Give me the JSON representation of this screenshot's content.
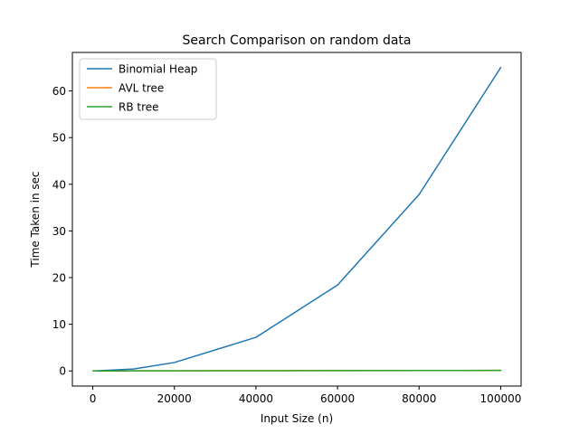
{
  "chart_data": {
    "type": "line",
    "title": "Search Comparison on random data",
    "xlabel": "Input Size (n)",
    "ylabel": "Time Taken in sec",
    "xlim": [
      -5000,
      105000
    ],
    "ylim": [
      -3.25,
      68.25
    ],
    "xticks": [
      0,
      20000,
      40000,
      60000,
      80000,
      100000
    ],
    "xtick_labels": [
      "0",
      "20000",
      "40000",
      "60000",
      "80000",
      "100000"
    ],
    "yticks": [
      0,
      10,
      20,
      30,
      40,
      50,
      60
    ],
    "ytick_labels": [
      "0",
      "10",
      "20",
      "30",
      "40",
      "50",
      "60"
    ],
    "grid": false,
    "legend_position": "top-left",
    "x": [
      100,
      10000,
      20000,
      40000,
      60000,
      80000,
      100000
    ],
    "series": [
      {
        "name": "Binomial Heap",
        "color": "#1f77b4",
        "values": [
          0.0,
          0.4,
          1.8,
          7.2,
          18.4,
          37.8,
          65.0
        ]
      },
      {
        "name": "AVL tree",
        "color": "#ff7f0e",
        "values": [
          0.0,
          0.01,
          0.02,
          0.04,
          0.07,
          0.09,
          0.11
        ]
      },
      {
        "name": "RB tree",
        "color": "#2ca02c",
        "values": [
          0.0,
          0.01,
          0.02,
          0.04,
          0.07,
          0.09,
          0.11
        ]
      }
    ]
  }
}
